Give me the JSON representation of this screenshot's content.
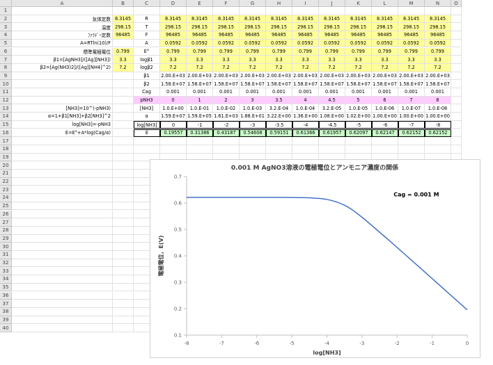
{
  "columns": [
    "A",
    "B",
    "C",
    "D",
    "E",
    "F",
    "G",
    "H",
    "I",
    "J",
    "K",
    "L",
    "M",
    "N",
    "O"
  ],
  "rows": [
    "1",
    "2",
    "3",
    "4",
    "5",
    "6",
    "7",
    "8",
    "9",
    "10",
    "11",
    "12",
    "13",
    "14",
    "15",
    "16",
    "17",
    "18",
    "19",
    "20",
    "21",
    "22",
    "23",
    "24",
    "25",
    "26",
    "27",
    "28",
    "29",
    "30",
    "31",
    "32",
    "33",
    "34",
    "35",
    "36",
    "37",
    "38",
    "39",
    "40"
  ],
  "table": [
    {
      "row": 2,
      "label": "気体定数",
      "b": "8.3145",
      "sym": "R",
      "vals": [
        "8.3145",
        "8.3145",
        "8.3145",
        "8.3145",
        "8.3145",
        "8.3145",
        "8.3145",
        "8.3145",
        "8.3145",
        "8.3145",
        "8.3145"
      ],
      "b_fill": "yel",
      "fill": "yel"
    },
    {
      "row": 3,
      "label": "温度",
      "b": "298.15",
      "sym": "T",
      "vals": [
        "298.15",
        "298.15",
        "298.15",
        "298.15",
        "298.15",
        "298.15",
        "298.15",
        "298.15",
        "298.15",
        "298.15",
        "298.15"
      ],
      "b_fill": "yel",
      "fill": "yel"
    },
    {
      "row": 4,
      "label": "ﾌｧﾗﾃﾞｰ定数",
      "b": "96485",
      "sym": "F",
      "vals": [
        "96485",
        "96485",
        "96485",
        "96485",
        "96485",
        "96485",
        "96485",
        "96485",
        "96485",
        "96485",
        "96485"
      ],
      "b_fill": "yel",
      "fill": "yel"
    },
    {
      "row": 5,
      "label": "A=RTln(10)/F",
      "b": "",
      "sym": "A",
      "vals": [
        "0.0592",
        "0.0592",
        "0.0592",
        "0.0592",
        "0.0592",
        "0.0592",
        "0.0592",
        "0.0592",
        "0.0592",
        "0.0592",
        "0.0592"
      ],
      "b_fill": "",
      "fill": "yel"
    },
    {
      "row": 6,
      "label": "標準電極電位",
      "b": "0.799",
      "sym": "E°",
      "vals": [
        "0.799",
        "0.799",
        "0.799",
        "0.799",
        "0.799",
        "0.799",
        "0.799",
        "0.799",
        "0.799",
        "0.799",
        "0.799"
      ],
      "b_fill": "yel",
      "fill": "yel"
    },
    {
      "row": 7,
      "label": "β1=[AgNH3]/([Ag][NH3])",
      "b": "3.3",
      "sym": "logβ1",
      "vals": [
        "3.3",
        "3.3",
        "3.3",
        "3.3",
        "3.3",
        "3.3",
        "3.3",
        "3.3",
        "3.3",
        "3.3",
        "3.3"
      ],
      "b_fill": "yel",
      "fill": "yel"
    },
    {
      "row": 8,
      "label": "β2=[Ag(NH3)2]/([Ag][NH4]^2)",
      "b": "7.2",
      "sym": "logβ2",
      "vals": [
        "7.2",
        "7.2",
        "7.2",
        "7.2",
        "7.2",
        "7.2",
        "7.2",
        "7.2",
        "7.2",
        "7.2",
        "7.2"
      ],
      "b_fill": "yel",
      "fill": "yel"
    },
    {
      "row": 9,
      "label": "",
      "b": "",
      "sym": "β1",
      "vals": [
        "2.00.E+03",
        "2.00.E+03",
        "2.00.E+03",
        "2.00.E+03",
        "2.00.E+03",
        "2.00.E+03",
        "2.00.E+03",
        "2.00.E+03",
        "2.00.E+03",
        "2.00.E+03",
        "2.00.E+03"
      ],
      "b_fill": "",
      "fill": ""
    },
    {
      "row": 10,
      "label": "",
      "b": "",
      "sym": "β2",
      "vals": [
        "1.58.E+07",
        "1.58.E+07",
        "1.58.E+07",
        "1.58.E+07",
        "1.58.E+07",
        "1.58.E+07",
        "1.58.E+07",
        "1.58.E+07",
        "1.58.E+07",
        "1.58.E+07",
        "1.58.E+07"
      ],
      "b_fill": "",
      "fill": ""
    },
    {
      "row": 11,
      "label": "",
      "b": "",
      "sym": "Cag",
      "vals": [
        "0.001",
        "0.001",
        "0.001",
        "0.001",
        "0.001",
        "0.001",
        "0.001",
        "0.001",
        "0.001",
        "0.001",
        "0.001"
      ],
      "b_fill": "",
      "fill": ""
    },
    {
      "row": 12,
      "label": "",
      "b": "",
      "sym": "pNH3",
      "vals": [
        "0",
        "1",
        "2",
        "3",
        "3.5",
        "4",
        "4.5",
        "5",
        "6",
        "7",
        "8"
      ],
      "b_fill": "",
      "fill": "pnk",
      "sym_fill": "pnk"
    },
    {
      "row": 13,
      "label": "[NH3]=10^(-pNH3)",
      "b": "",
      "sym": "[NH3]",
      "vals": [
        "1.0.E+00",
        "1.0.E-01",
        "1.0.E-02",
        "1.0.E-03",
        "3.2.E-04",
        "1.0.E-04",
        "3.2.E-05",
        "1.0.E-05",
        "1.0.E-06",
        "1.0.E-07",
        "1.0.E-08"
      ],
      "b_fill": "",
      "fill": ""
    },
    {
      "row": 14,
      "label": "α=1+β1[NH3]+β2[NH3]^2",
      "b": "",
      "sym": "α",
      "vals": [
        "1.59.E+07",
        "1.59.E+05",
        "1.61.E+03",
        "1.88.E+01",
        "3.22.E+00",
        "1.36.E+00",
        "1.08.E+00",
        "1.02.E+00",
        "1.00.E+00",
        "1.00.E+00",
        "1.00.E+00"
      ],
      "b_fill": "",
      "fill": ""
    },
    {
      "row": 15,
      "label": "log[NH3]=-pNH3",
      "b": "",
      "sym": "log[NH3]",
      "vals": [
        "0",
        "-1",
        "-2",
        "-3",
        "-3.5",
        "-4",
        "-4.5",
        "-5",
        "-6",
        "-7",
        "-8"
      ],
      "b_fill": "",
      "fill": "",
      "boxed": true
    },
    {
      "row": 16,
      "label": "E=E°+A*log(Cag/α)",
      "b": "",
      "sym": "E",
      "vals": [
        "0.19557",
        "0.31386",
        "0.43187",
        "0.54608",
        "0.59151",
        "0.61366",
        "0.61957",
        "0.62097",
        "0.62147",
        "0.62152",
        "0.62152"
      ],
      "b_fill": "",
      "fill": "grn",
      "boxed": true
    }
  ],
  "chart_data": {
    "type": "line",
    "title": "0.001 M AgNO3溶液の電極電位とアンモニア濃度の関係",
    "annotation": "Cag = 0.001 M",
    "xlabel": "log[NH3]",
    "ylabel": "電極電位，E(V)",
    "xlim": [
      -8,
      0
    ],
    "ylim": [
      0.1,
      0.7
    ],
    "xticks": [
      "-8",
      "-7",
      "-6",
      "-5",
      "-4",
      "-3",
      "-2",
      "-1",
      "0"
    ],
    "yticks": [
      "0.1",
      "0.2",
      "0.3",
      "0.4",
      "0.5",
      "0.6",
      "0.7"
    ],
    "series": [
      {
        "x": [
          -8,
          -7,
          -6,
          -5,
          -4.5,
          -4,
          -3.5,
          -3,
          -2,
          -1,
          0
        ],
        "values": [
          0.62152,
          0.62152,
          0.62147,
          0.62097,
          0.61957,
          0.61366,
          0.59151,
          0.54608,
          0.43187,
          0.31386,
          0.19557
        ]
      }
    ],
    "line_color": "#4472c4",
    "grid": false
  }
}
